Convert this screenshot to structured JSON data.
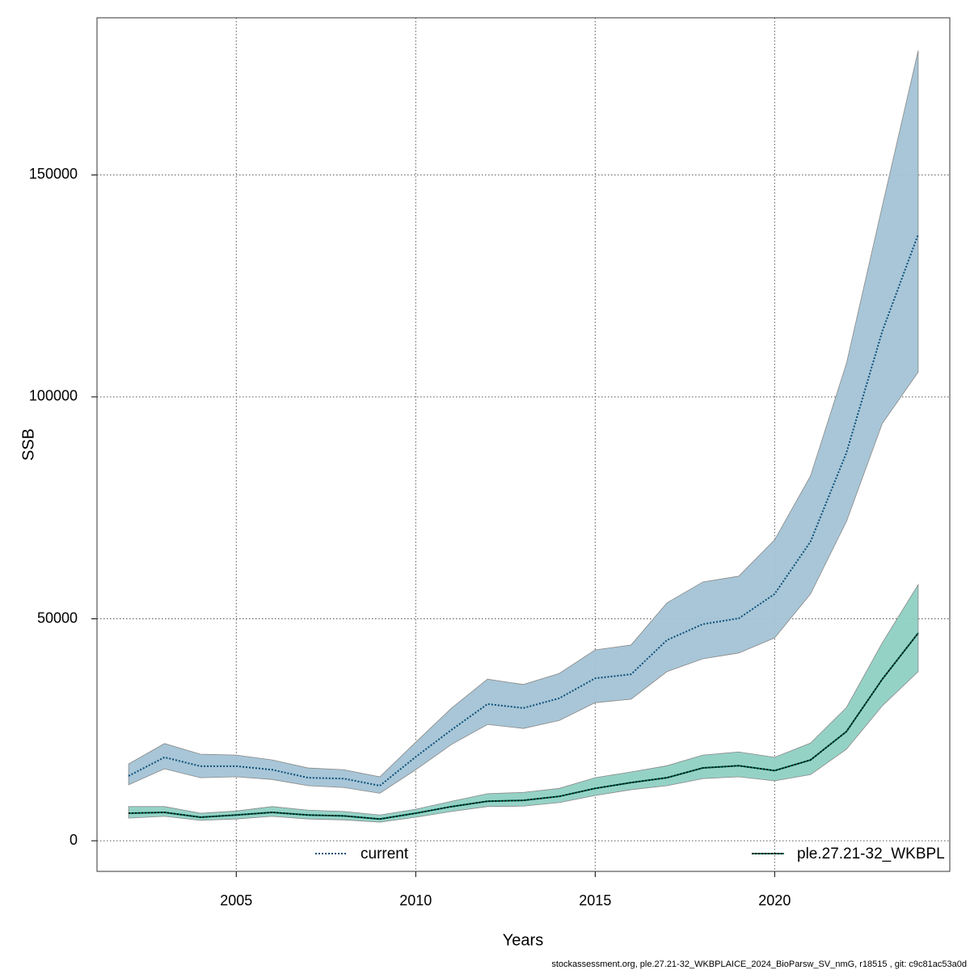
{
  "chart_data": {
    "type": "line",
    "x_label": "Years",
    "y_label": "SSB",
    "footer": "stockassessment.org, ple.27.21-32_WKBPLAICE_2024_BioParsw_SV_nmG, r18515 , git: c9c81ac53a0d",
    "x": [
      2002,
      2003,
      2004,
      2005,
      2006,
      2007,
      2008,
      2009,
      2010,
      2011,
      2012,
      2013,
      2014,
      2015,
      2016,
      2017,
      2018,
      2019,
      2020,
      2021,
      2022,
      2023,
      2024
    ],
    "xlim": [
      2001.12,
      2024.88
    ],
    "xticks": [
      2005,
      2010,
      2015,
      2020
    ],
    "ylim": [
      -6900,
      185400
    ],
    "yticks": [
      0,
      50000,
      100000,
      150000
    ],
    "grid": true,
    "legend": "bottom",
    "series": [
      {
        "name": "current",
        "color": "#0b4f7a",
        "band_color": "#a3c3d5",
        "dash": "dotted",
        "values": [
          14600,
          18800,
          16800,
          16800,
          16000,
          14200,
          14000,
          12400,
          18900,
          25000,
          30800,
          29900,
          32100,
          36600,
          37500,
          45200,
          48800,
          50100,
          55600,
          67400,
          87400,
          114800,
          136600
        ],
        "upper": [
          17300,
          21900,
          19500,
          19300,
          18200,
          16400,
          16000,
          14400,
          22200,
          29900,
          36400,
          35200,
          37700,
          43000,
          44100,
          53600,
          58300,
          59600,
          67800,
          82200,
          107500,
          143000,
          178000
        ],
        "lower": [
          12600,
          16200,
          14200,
          14400,
          13800,
          12400,
          12000,
          10700,
          16000,
          21700,
          26200,
          25300,
          27100,
          31100,
          31900,
          38100,
          41000,
          42300,
          45700,
          55600,
          71900,
          94000,
          105600
        ]
      },
      {
        "name": "ple.27.21-32_WKBPL",
        "color": "#006b55",
        "band_color": "#8fd0c3",
        "dash": "solid",
        "values": [
          6200,
          6400,
          5300,
          5800,
          6400,
          5800,
          5600,
          4900,
          6200,
          7700,
          8900,
          9100,
          10000,
          11800,
          13100,
          14200,
          16400,
          16900,
          15800,
          18200,
          24600,
          36400,
          46800
        ],
        "upper": [
          7700,
          7700,
          6200,
          6700,
          7700,
          6900,
          6600,
          5800,
          7100,
          8900,
          10600,
          10900,
          11800,
          14200,
          15500,
          16900,
          19300,
          20000,
          18800,
          22000,
          30000,
          44600,
          57700
        ],
        "lower": [
          5100,
          5500,
          4600,
          4900,
          5500,
          4900,
          4700,
          4200,
          5300,
          6600,
          7700,
          7800,
          8600,
          10200,
          11500,
          12400,
          14000,
          14400,
          13500,
          14900,
          20600,
          30400,
          38100
        ]
      }
    ]
  }
}
